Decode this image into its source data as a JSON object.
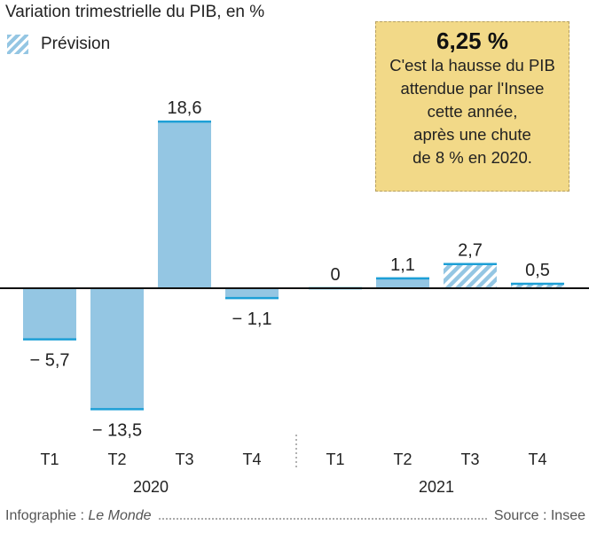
{
  "chart_data": {
    "type": "bar",
    "title": "Variation trimestrielle du PIB, en %",
    "legend": [
      {
        "label": "Prévision",
        "pattern": "hatched"
      }
    ],
    "groups": [
      {
        "label": "2020",
        "categories": [
          "T1",
          "T2",
          "T3",
          "T4"
        ]
      },
      {
        "label": "2021",
        "categories": [
          "T1",
          "T2",
          "T3",
          "T4"
        ]
      }
    ],
    "bars": [
      {
        "quarter": "T1",
        "year": "2020",
        "value": -5.7,
        "label": "− 5,7",
        "forecast": false
      },
      {
        "quarter": "T2",
        "year": "2020",
        "value": -13.5,
        "label": "− 13,5",
        "forecast": false
      },
      {
        "quarter": "T3",
        "year": "2020",
        "value": 18.6,
        "label": "18,6",
        "forecast": false
      },
      {
        "quarter": "T4",
        "year": "2020",
        "value": -1.1,
        "label": "− 1,1",
        "forecast": false
      },
      {
        "quarter": "T1",
        "year": "2021",
        "value": 0,
        "label": "0",
        "forecast": false
      },
      {
        "quarter": "T2",
        "year": "2021",
        "value": 1.1,
        "label": "1,1",
        "forecast": false
      },
      {
        "quarter": "T3",
        "year": "2021",
        "value": 2.7,
        "label": "2,7",
        "forecast": true
      },
      {
        "quarter": "T4",
        "year": "2021",
        "value": 0.5,
        "label": "0,5",
        "forecast": true
      }
    ],
    "ylim": [
      -14.5,
      21
    ],
    "grid": false,
    "colors": {
      "bar": "#94c6e3",
      "bar_edge": "#1d9fd6",
      "axis": "#111111",
      "separator": "#999999"
    }
  },
  "callout": {
    "value": "6,25 %",
    "lines": [
      "C'est la hausse du PIB",
      "attendue par l'Insee",
      "cette année,",
      "après une chute",
      "de 8 % en 2020."
    ]
  },
  "footer": {
    "credit_prefix": "Infographie : ",
    "credit_name": "Le Monde",
    "source": "Source : Insee"
  }
}
